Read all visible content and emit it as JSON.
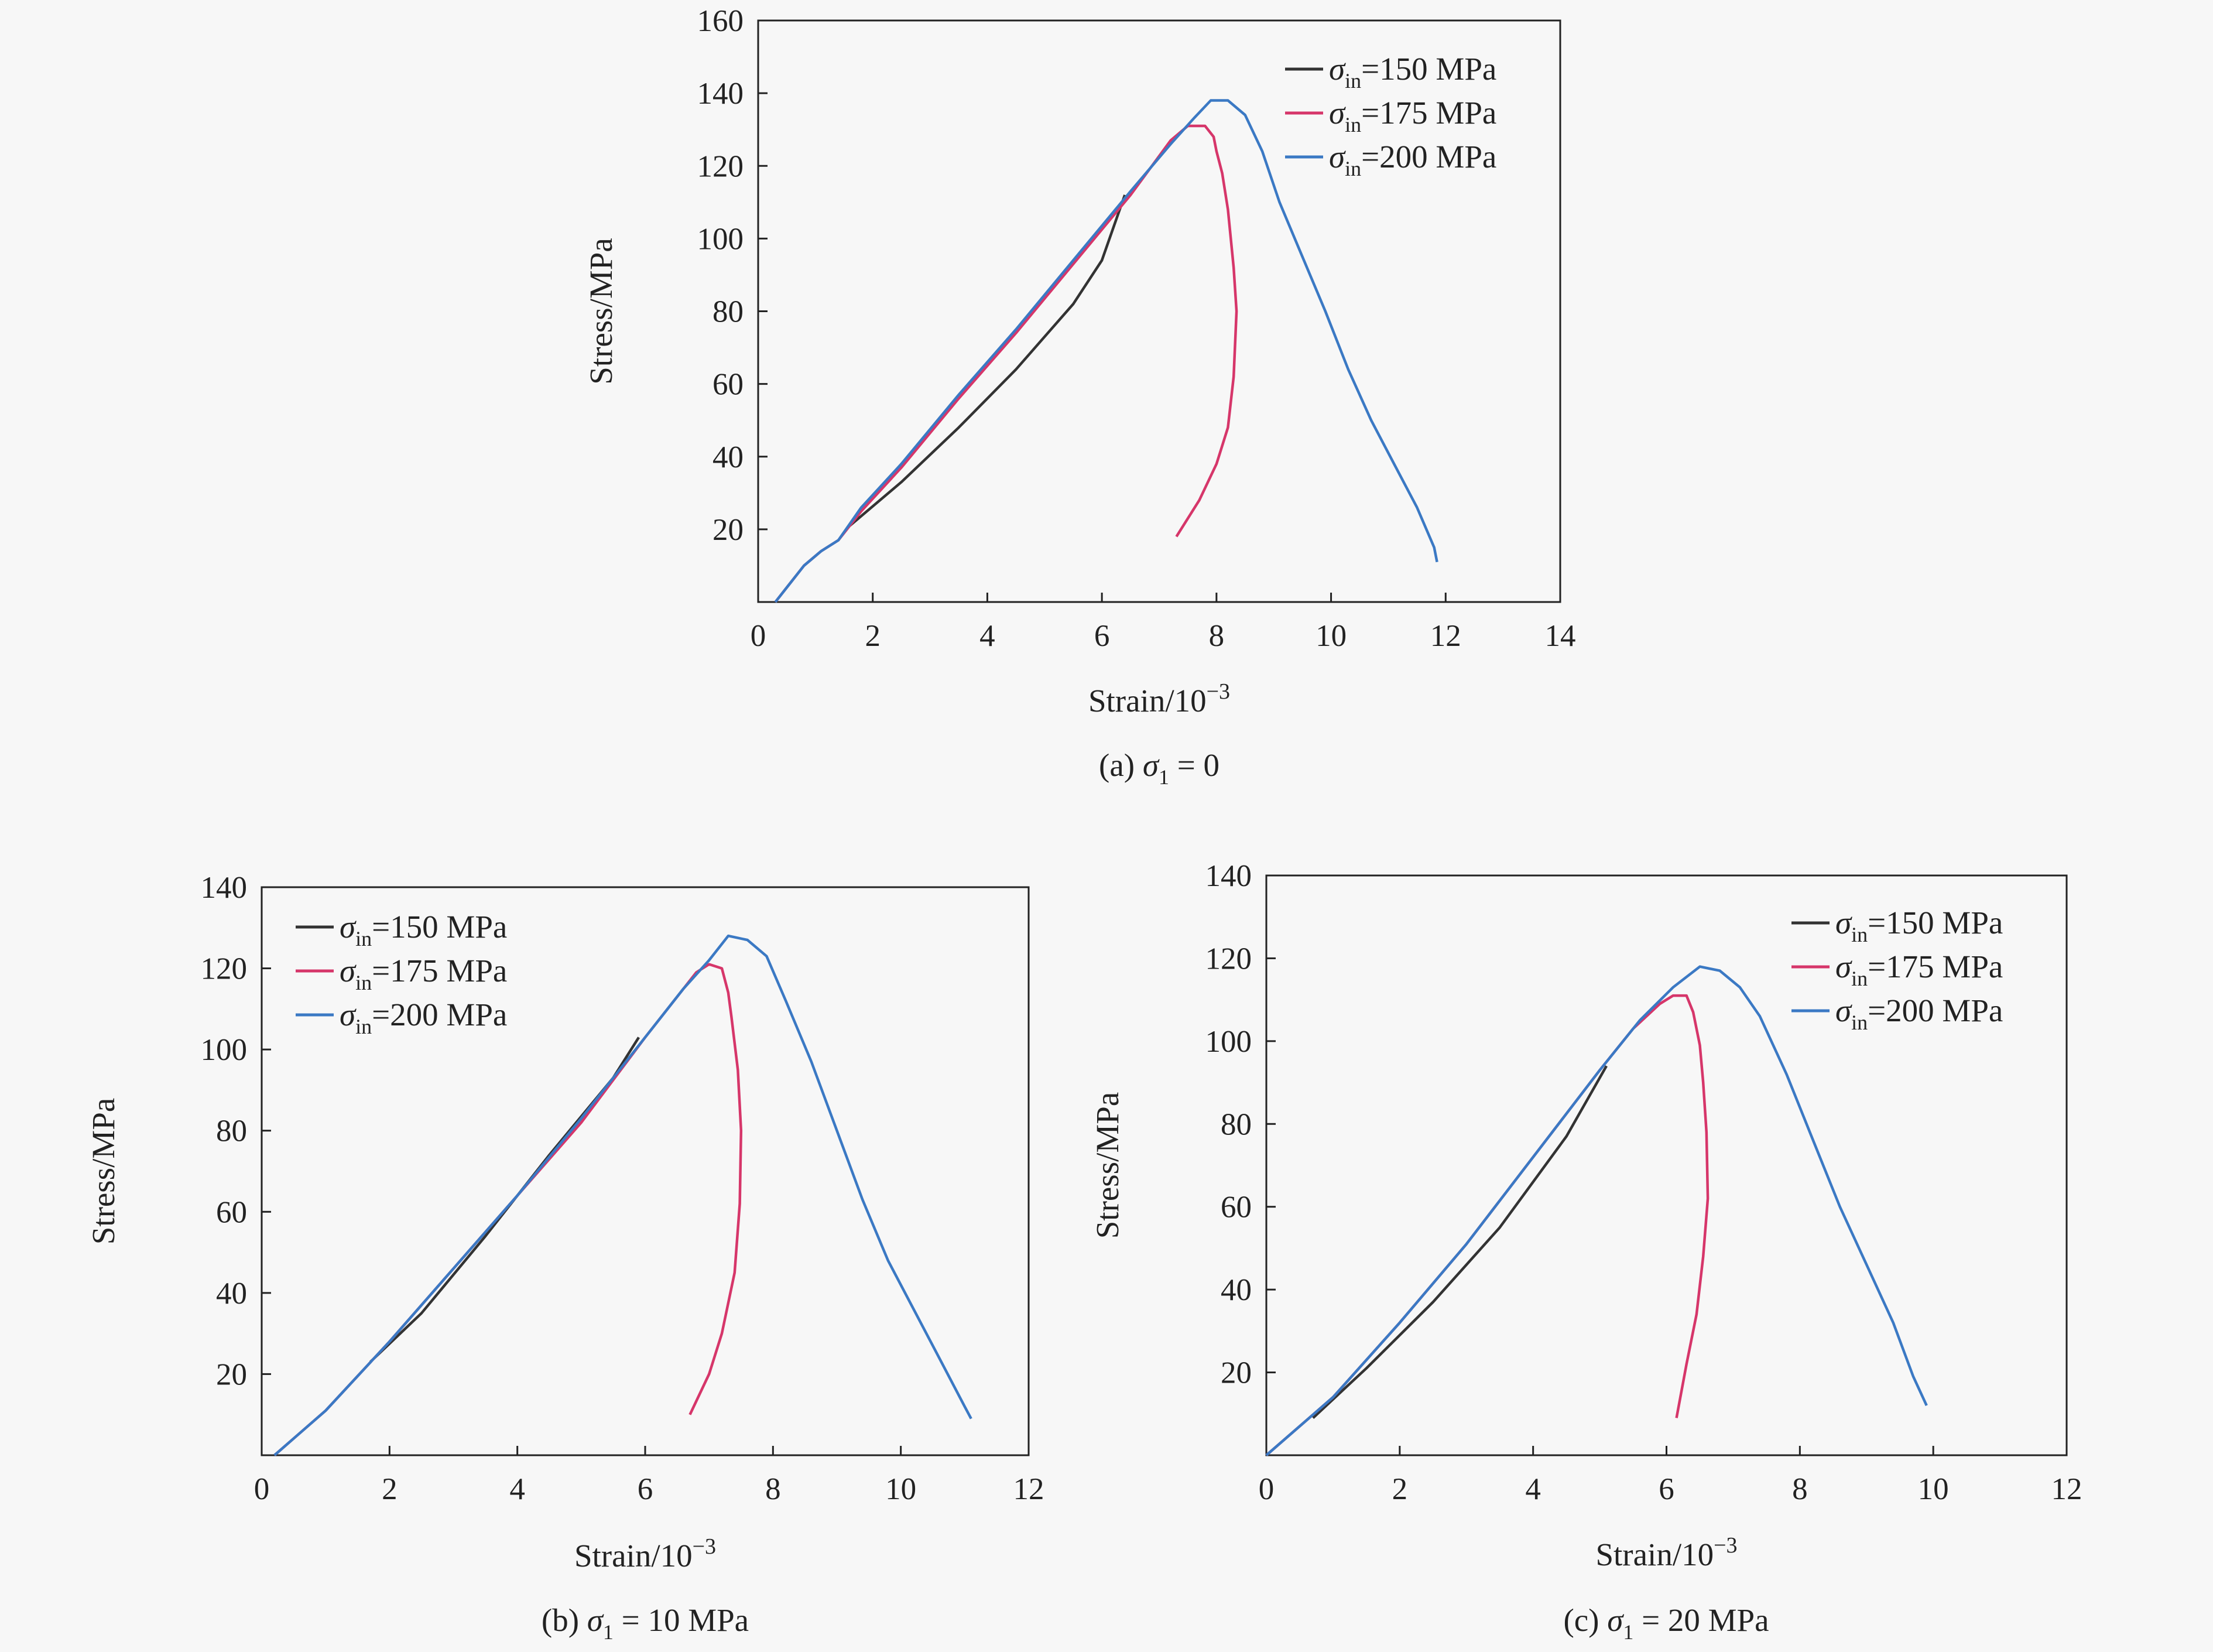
{
  "chart_data": [
    {
      "type": "line",
      "panel": "a",
      "caption": {
        "prefix": "(a) ",
        "symbol": "σ",
        "sub": "1",
        "suffix": " = 0"
      },
      "xlabel": "Strain/10",
      "xlabel_sup": "−3",
      "ylabel": "Stress/MPa",
      "xlim": [
        0,
        14
      ],
      "ylim": [
        0,
        160
      ],
      "xticks": [
        0,
        2,
        4,
        6,
        8,
        10,
        12,
        14
      ],
      "yticks": [
        0,
        20,
        40,
        60,
        80,
        100,
        120,
        140,
        160
      ],
      "legend_position": "top-right",
      "series": [
        {
          "name": "σin=150 MPa",
          "label_symbol": "σ",
          "label_sub": "in",
          "label_rest": "=150 MPa",
          "color": "#333333",
          "points": [
            [
              1.6,
              21
            ],
            [
              2.5,
              33
            ],
            [
              3.5,
              48
            ],
            [
              4.5,
              64
            ],
            [
              5.5,
              82
            ],
            [
              6.0,
              94
            ],
            [
              6.4,
              112
            ]
          ]
        },
        {
          "name": "σin=175 MPa",
          "label_symbol": "σ",
          "label_sub": "in",
          "label_rest": "=175 MPa",
          "color": "#d6366a",
          "points": [
            [
              0.3,
              0
            ],
            [
              0.5,
              4
            ],
            [
              0.8,
              10
            ],
            [
              1.1,
              14
            ],
            [
              1.4,
              17
            ],
            [
              1.8,
              25
            ],
            [
              2.5,
              37
            ],
            [
              3.5,
              56
            ],
            [
              4.5,
              74
            ],
            [
              5.5,
              93
            ],
            [
              6.5,
              112
            ],
            [
              7.2,
              127
            ],
            [
              7.5,
              131
            ],
            [
              7.8,
              131
            ],
            [
              7.95,
              128
            ],
            [
              8.0,
              124
            ],
            [
              8.1,
              118
            ],
            [
              8.2,
              108
            ],
            [
              8.3,
              92
            ],
            [
              8.35,
              80
            ],
            [
              8.3,
              62
            ],
            [
              8.2,
              48
            ],
            [
              8.0,
              38
            ],
            [
              7.7,
              28
            ],
            [
              7.3,
              18
            ]
          ]
        },
        {
          "name": "σin=200 MPa",
          "label_symbol": "σ",
          "label_sub": "in",
          "label_rest": "=200 MPa",
          "color": "#3b79c4",
          "points": [
            [
              0.3,
              0
            ],
            [
              0.5,
              4
            ],
            [
              0.8,
              10
            ],
            [
              1.1,
              14
            ],
            [
              1.4,
              17
            ],
            [
              1.8,
              26
            ],
            [
              2.5,
              38
            ],
            [
              3.5,
              57
            ],
            [
              4.5,
              75
            ],
            [
              5.5,
              94
            ],
            [
              6.5,
              113
            ],
            [
              7.2,
              126
            ],
            [
              7.6,
              133
            ],
            [
              7.9,
              138
            ],
            [
              8.2,
              138
            ],
            [
              8.5,
              134
            ],
            [
              8.8,
              124
            ],
            [
              9.1,
              110
            ],
            [
              9.5,
              95
            ],
            [
              9.9,
              80
            ],
            [
              10.3,
              64
            ],
            [
              10.7,
              50
            ],
            [
              11.1,
              38
            ],
            [
              11.5,
              26
            ],
            [
              11.8,
              15
            ],
            [
              11.85,
              11
            ]
          ]
        }
      ]
    },
    {
      "type": "line",
      "panel": "b",
      "caption": {
        "prefix": "(b) ",
        "symbol": "σ",
        "sub": "1",
        "suffix": " = 10 MPa"
      },
      "xlabel": "Strain/10",
      "xlabel_sup": "−3",
      "ylabel": "Stress/MPa",
      "xlim": [
        0,
        12
      ],
      "ylim": [
        0,
        140
      ],
      "xticks": [
        0,
        2,
        4,
        6,
        8,
        10,
        12
      ],
      "yticks": [
        0,
        20,
        40,
        60,
        80,
        100,
        120,
        140
      ],
      "legend_position": "top-left",
      "series": [
        {
          "name": "σin=150 MPa",
          "label_symbol": "σ",
          "label_sub": "in",
          "label_rest": "=150 MPa",
          "color": "#333333",
          "points": [
            [
              1.7,
              23
            ],
            [
              2.5,
              35
            ],
            [
              3.5,
              54
            ],
            [
              4.5,
              74
            ],
            [
              5.5,
              93
            ],
            [
              5.9,
              103
            ]
          ]
        },
        {
          "name": "σin=175 MPa",
          "label_symbol": "σ",
          "label_sub": "in",
          "label_rest": "=175 MPa",
          "color": "#d6366a",
          "points": [
            [
              0.2,
              0
            ],
            [
              1,
              11
            ],
            [
              2,
              28
            ],
            [
              3,
              46
            ],
            [
              4,
              64
            ],
            [
              5,
              82
            ],
            [
              6,
              103
            ],
            [
              6.5,
              113
            ],
            [
              6.8,
              119
            ],
            [
              7.0,
              121
            ],
            [
              7.2,
              120
            ],
            [
              7.3,
              114
            ],
            [
              7.35,
              108
            ],
            [
              7.45,
              95
            ],
            [
              7.5,
              80
            ],
            [
              7.48,
              62
            ],
            [
              7.4,
              45
            ],
            [
              7.2,
              30
            ],
            [
              7.0,
              20
            ],
            [
              6.7,
              10
            ]
          ]
        },
        {
          "name": "σin=200 MPa",
          "label_symbol": "σ",
          "label_sub": "in",
          "label_rest": "=200 MPa",
          "color": "#3b79c4",
          "points": [
            [
              0.2,
              0
            ],
            [
              1,
              11
            ],
            [
              2,
              28
            ],
            [
              3,
              46
            ],
            [
              4,
              64
            ],
            [
              5,
              83
            ],
            [
              6,
              103
            ],
            [
              6.6,
              115
            ],
            [
              7.0,
              122
            ],
            [
              7.3,
              128
            ],
            [
              7.6,
              127
            ],
            [
              7.9,
              123
            ],
            [
              8.2,
              112
            ],
            [
              8.6,
              97
            ],
            [
              9.0,
              80
            ],
            [
              9.4,
              63
            ],
            [
              9.8,
              48
            ],
            [
              10.2,
              36
            ],
            [
              10.6,
              24
            ],
            [
              11.0,
              12
            ],
            [
              11.1,
              9
            ]
          ]
        }
      ]
    },
    {
      "type": "line",
      "panel": "c",
      "caption": {
        "prefix": "(c) ",
        "symbol": "σ",
        "sub": "1",
        "suffix": " = 20 MPa"
      },
      "xlabel": "Strain/10",
      "xlabel_sup": "−3",
      "ylabel": "Stress/MPa",
      "xlim": [
        0,
        12
      ],
      "ylim": [
        0,
        140
      ],
      "xticks": [
        0,
        2,
        4,
        6,
        8,
        10,
        12
      ],
      "yticks": [
        0,
        20,
        40,
        60,
        80,
        100,
        120,
        140
      ],
      "legend_position": "top-right",
      "series": [
        {
          "name": "σin=150 MPa",
          "label_symbol": "σ",
          "label_sub": "in",
          "label_rest": "=150 MPa",
          "color": "#333333",
          "points": [
            [
              0.7,
              9
            ],
            [
              1.5,
              21
            ],
            [
              2.5,
              37
            ],
            [
              3.5,
              55
            ],
            [
              4.5,
              77
            ],
            [
              5.1,
              94
            ]
          ]
        },
        {
          "name": "σin=175 MPa",
          "label_symbol": "σ",
          "label_sub": "in",
          "label_rest": "=175 MPa",
          "color": "#d6366a",
          "points": [
            [
              0,
              0
            ],
            [
              1,
              14
            ],
            [
              2,
              32
            ],
            [
              3,
              51
            ],
            [
              4,
              72
            ],
            [
              5,
              93
            ],
            [
              5.5,
              103
            ],
            [
              5.9,
              109
            ],
            [
              6.1,
              111
            ],
            [
              6.3,
              111
            ],
            [
              6.4,
              107
            ],
            [
              6.5,
              99
            ],
            [
              6.55,
              90
            ],
            [
              6.6,
              78
            ],
            [
              6.62,
              62
            ],
            [
              6.55,
              48
            ],
            [
              6.45,
              34
            ],
            [
              6.3,
              22
            ],
            [
              6.15,
              9
            ]
          ]
        },
        {
          "name": "σin=200 MPa",
          "label_symbol": "σ",
          "label_sub": "in",
          "label_rest": "=200 MPa",
          "color": "#3b79c4",
          "points": [
            [
              0,
              0
            ],
            [
              1,
              14
            ],
            [
              2,
              32
            ],
            [
              3,
              51
            ],
            [
              4,
              72
            ],
            [
              5,
              93
            ],
            [
              5.6,
              105
            ],
            [
              6.1,
              113
            ],
            [
              6.5,
              118
            ],
            [
              6.8,
              117
            ],
            [
              7.1,
              113
            ],
            [
              7.4,
              106
            ],
            [
              7.8,
              92
            ],
            [
              8.2,
              76
            ],
            [
              8.6,
              60
            ],
            [
              9.0,
              46
            ],
            [
              9.4,
              32
            ],
            [
              9.7,
              19
            ],
            [
              9.9,
              12
            ]
          ]
        }
      ]
    }
  ]
}
